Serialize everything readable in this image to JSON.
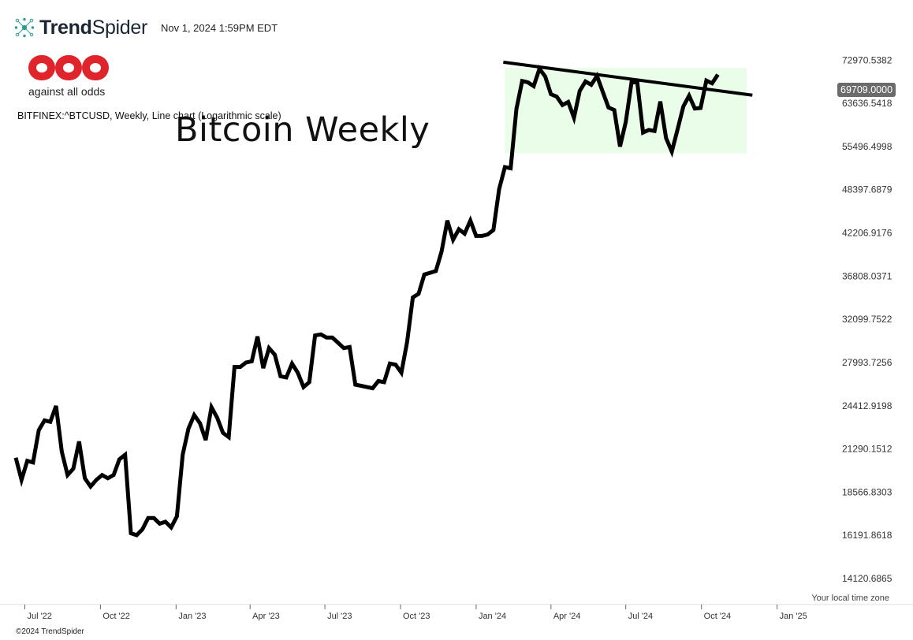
{
  "header": {
    "brand_bold": "Trend",
    "brand_light": "Spider",
    "timestamp": "Nov 1, 2024 1:59PM EDT"
  },
  "watermark": {
    "logo_text": "against all odds"
  },
  "symbol_line": "BITFINEX:^BTCUSD, Weekly, Line chart (Logarithmic scale)",
  "footer": {
    "timezone": "Your local time zone",
    "copyright": "©2024 TrendSpider"
  },
  "last_price_badge": "69709.0000",
  "chart_data": {
    "type": "line",
    "title": "Bitcoin Weekly",
    "scale": "log",
    "ylim": [
      13500,
      76000
    ],
    "y_ticks": [
      "72970.5382",
      "63636.5418",
      "55496.4998",
      "48397.6879",
      "42206.9176",
      "36808.0371",
      "32099.7522",
      "27993.7256",
      "24412.9198",
      "21290.1512",
      "18566.8303",
      "16191.8618",
      "14120.6865"
    ],
    "x_ticks": [
      "Jul '22",
      "Oct '22",
      "Jan '23",
      "Apr '23",
      "Jul '23",
      "Oct '23",
      "Jan '24",
      "Apr '24",
      "Jul '24",
      "Oct '24",
      "Jan '25"
    ],
    "x_start": "2022-06-20",
    "x_end": "2025-02-03",
    "series": [
      {
        "color": "#000000",
        "points": [
          [
            "2022-06-20",
            20700
          ],
          [
            "2022-06-27",
            19300
          ],
          [
            "2022-07-04",
            20500
          ],
          [
            "2022-07-11",
            20400
          ],
          [
            "2022-07-18",
            22600
          ],
          [
            "2022-07-25",
            23300
          ],
          [
            "2022-08-01",
            23200
          ],
          [
            "2022-08-08",
            24400
          ],
          [
            "2022-08-15",
            21100
          ],
          [
            "2022-08-22",
            19600
          ],
          [
            "2022-08-29",
            20000
          ],
          [
            "2022-09-05",
            21800
          ],
          [
            "2022-09-12",
            19400
          ],
          [
            "2022-09-19",
            18900
          ],
          [
            "2022-09-26",
            19300
          ],
          [
            "2022-10-03",
            19600
          ],
          [
            "2022-10-10",
            19400
          ],
          [
            "2022-10-17",
            19600
          ],
          [
            "2022-10-24",
            20600
          ],
          [
            "2022-10-31",
            20900
          ],
          [
            "2022-11-07",
            16300
          ],
          [
            "2022-11-14",
            16200
          ],
          [
            "2022-11-21",
            16500
          ],
          [
            "2022-11-28",
            17100
          ],
          [
            "2022-12-05",
            17100
          ],
          [
            "2022-12-12",
            16800
          ],
          [
            "2022-12-19",
            16900
          ],
          [
            "2022-12-26",
            16600
          ],
          [
            "2023-01-02",
            17200
          ],
          [
            "2023-01-09",
            20900
          ],
          [
            "2023-01-16",
            22700
          ],
          [
            "2023-01-23",
            23700
          ],
          [
            "2023-01-30",
            23100
          ],
          [
            "2023-02-06",
            21900
          ],
          [
            "2023-02-13",
            24300
          ],
          [
            "2023-02-20",
            23500
          ],
          [
            "2023-02-27",
            22400
          ],
          [
            "2023-03-06",
            22100
          ],
          [
            "2023-03-13",
            27600
          ],
          [
            "2023-03-20",
            27600
          ],
          [
            "2023-03-27",
            28000
          ],
          [
            "2023-04-03",
            28100
          ],
          [
            "2023-04-10",
            30400
          ],
          [
            "2023-04-17",
            27500
          ],
          [
            "2023-04-24",
            29300
          ],
          [
            "2023-05-01",
            28700
          ],
          [
            "2023-05-08",
            26800
          ],
          [
            "2023-05-15",
            26700
          ],
          [
            "2023-05-22",
            27900
          ],
          [
            "2023-05-29",
            27100
          ],
          [
            "2023-06-05",
            25900
          ],
          [
            "2023-06-12",
            26300
          ],
          [
            "2023-06-19",
            30500
          ],
          [
            "2023-06-26",
            30600
          ],
          [
            "2023-07-03",
            30300
          ],
          [
            "2023-07-10",
            30300
          ],
          [
            "2023-07-17",
            29800
          ],
          [
            "2023-07-24",
            29300
          ],
          [
            "2023-07-31",
            29400
          ],
          [
            "2023-08-07",
            26100
          ],
          [
            "2023-08-14",
            26000
          ],
          [
            "2023-08-21",
            25900
          ],
          [
            "2023-08-28",
            25800
          ],
          [
            "2023-09-04",
            26400
          ],
          [
            "2023-09-11",
            26300
          ],
          [
            "2023-09-18",
            27900
          ],
          [
            "2023-09-25",
            27800
          ],
          [
            "2023-10-02",
            27100
          ],
          [
            "2023-10-09",
            29900
          ],
          [
            "2023-10-16",
            34400
          ],
          [
            "2023-10-23",
            34800
          ],
          [
            "2023-10-30",
            37000
          ],
          [
            "2023-11-06",
            37200
          ],
          [
            "2023-11-13",
            37400
          ],
          [
            "2023-11-20",
            39800
          ],
          [
            "2023-11-27",
            43900
          ],
          [
            "2023-12-04",
            41300
          ],
          [
            "2023-12-11",
            42700
          ],
          [
            "2023-12-18",
            42100
          ],
          [
            "2023-12-25",
            43900
          ],
          [
            "2024-01-01",
            41800
          ],
          [
            "2024-01-08",
            41800
          ],
          [
            "2024-01-15",
            42000
          ],
          [
            "2024-01-22",
            42600
          ],
          [
            "2024-01-29",
            48500
          ],
          [
            "2024-02-05",
            52000
          ],
          [
            "2024-02-12",
            51800
          ],
          [
            "2024-02-19",
            62500
          ],
          [
            "2024-02-26",
            68300
          ],
          [
            "2024-03-04",
            68000
          ],
          [
            "2024-03-11",
            67200
          ],
          [
            "2024-03-18",
            71000
          ],
          [
            "2024-03-25",
            69300
          ],
          [
            "2024-04-01",
            65500
          ],
          [
            "2024-04-08",
            65000
          ],
          [
            "2024-04-15",
            63300
          ],
          [
            "2024-04-22",
            63900
          ],
          [
            "2024-04-29",
            60800
          ],
          [
            "2024-05-06",
            66200
          ],
          [
            "2024-05-13",
            68200
          ],
          [
            "2024-05-20",
            67500
          ],
          [
            "2024-05-27",
            69400
          ],
          [
            "2024-06-03",
            66000
          ],
          [
            "2024-06-10",
            62800
          ],
          [
            "2024-06-17",
            62300
          ],
          [
            "2024-06-24",
            55500
          ],
          [
            "2024-07-01",
            60000
          ],
          [
            "2024-07-08",
            68000
          ],
          [
            "2024-07-15",
            68000
          ],
          [
            "2024-07-22",
            58000
          ],
          [
            "2024-07-29",
            58500
          ],
          [
            "2024-08-05",
            58300
          ],
          [
            "2024-08-12",
            64000
          ],
          [
            "2024-08-19",
            57000
          ],
          [
            "2024-08-26",
            54600
          ],
          [
            "2024-09-02",
            58600
          ],
          [
            "2024-09-09",
            63000
          ],
          [
            "2024-09-16",
            65200
          ],
          [
            "2024-09-23",
            62600
          ],
          [
            "2024-09-30",
            62700
          ],
          [
            "2024-10-07",
            68400
          ],
          [
            "2024-10-14",
            67800
          ],
          [
            "2024-10-21",
            69709
          ]
        ]
      }
    ],
    "trendline": {
      "color": "#000000",
      "points": [
        [
          "2024-02-03",
          72500
        ],
        [
          "2024-12-02",
          65300
        ]
      ]
    },
    "range_box": {
      "color": "#e9fde9",
      "x0": "2024-02-05",
      "x1": "2024-11-25",
      "y0": 54300,
      "y1": 71200
    }
  }
}
